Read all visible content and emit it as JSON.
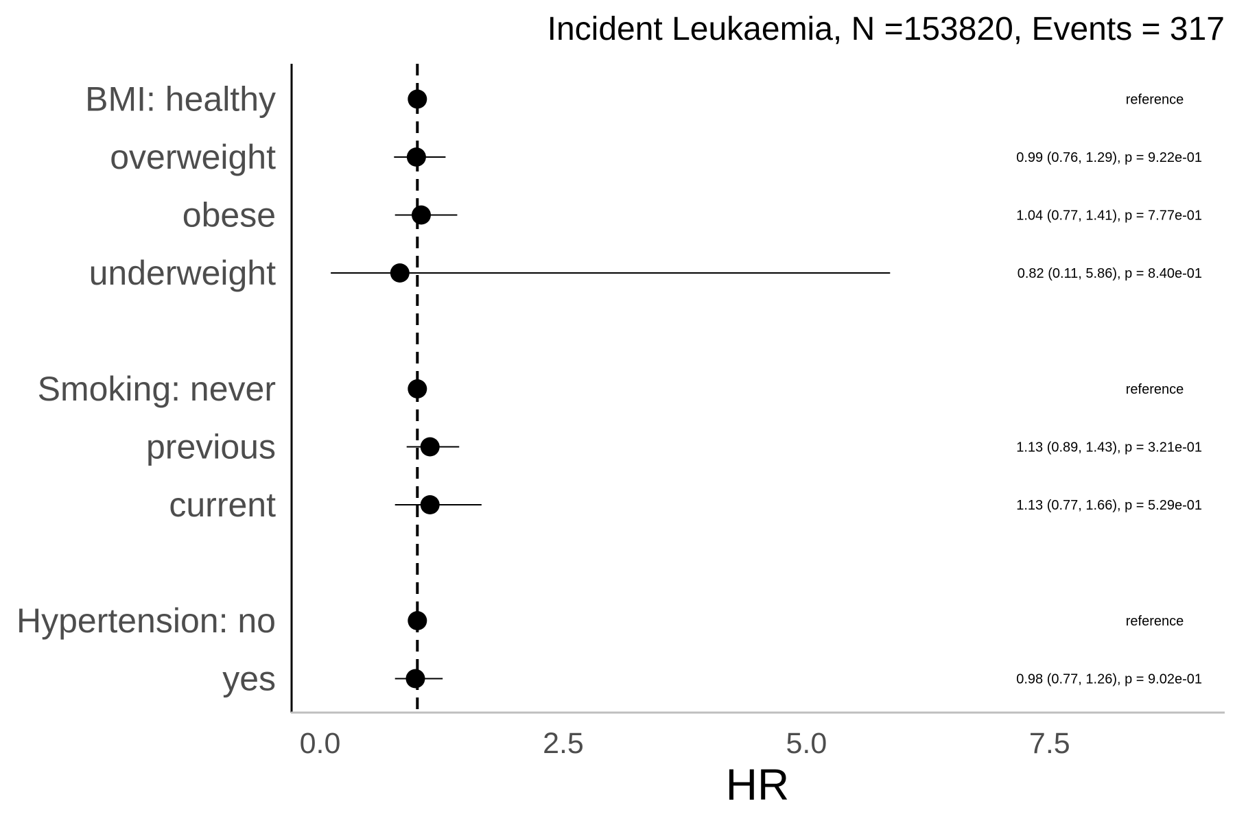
{
  "chart_data": {
    "type": "scatter",
    "subtype": "forest-plot",
    "title": "Incident Leukaemia, N =153820, Events = 317",
    "xlabel": "HR",
    "ylabel": "",
    "xlim": [
      -0.3,
      9.3
    ],
    "x_ticks": [
      {
        "value": 0.0,
        "label": "0.0"
      },
      {
        "value": 2.5,
        "label": "2.5"
      },
      {
        "value": 5.0,
        "label": "5.0"
      },
      {
        "value": 7.5,
        "label": "7.5"
      }
    ],
    "reference_line": 1.0,
    "grid": false,
    "legend": "none",
    "colors": {
      "point": "#000000",
      "line": "#000000",
      "label": "#4d4d4d",
      "axis": "#bfbfbf"
    },
    "rows": [
      {
        "label": "BMI: healthy",
        "hr": 1.0,
        "lower": null,
        "upper": null,
        "annotation": "reference",
        "slot": 0
      },
      {
        "label": "overweight",
        "hr": 0.99,
        "lower": 0.76,
        "upper": 1.29,
        "annotation": "0.99 (0.76, 1.29), p = 9.22e-01",
        "slot": 1
      },
      {
        "label": "obese",
        "hr": 1.04,
        "lower": 0.77,
        "upper": 1.41,
        "annotation": "1.04 (0.77, 1.41), p = 7.77e-01",
        "slot": 2
      },
      {
        "label": "underweight",
        "hr": 0.82,
        "lower": 0.11,
        "upper": 5.86,
        "annotation": "0.82 (0.11, 5.86), p = 8.40e-01",
        "slot": 3
      },
      {
        "label": "Smoking: never",
        "hr": 1.0,
        "lower": null,
        "upper": null,
        "annotation": "reference",
        "slot": 5
      },
      {
        "label": "previous",
        "hr": 1.13,
        "lower": 0.89,
        "upper": 1.43,
        "annotation": "1.13 (0.89, 1.43), p = 3.21e-01",
        "slot": 6
      },
      {
        "label": "current",
        "hr": 1.13,
        "lower": 0.77,
        "upper": 1.66,
        "annotation": "1.13 (0.77, 1.66), p = 5.29e-01",
        "slot": 7
      },
      {
        "label": "Hypertension: no",
        "hr": 1.0,
        "lower": null,
        "upper": null,
        "annotation": "reference",
        "slot": 9
      },
      {
        "label": "yes",
        "hr": 0.98,
        "lower": 0.77,
        "upper": 1.26,
        "annotation": "0.98 (0.77, 1.26), p = 9.02e-01",
        "slot": 10
      }
    ]
  }
}
